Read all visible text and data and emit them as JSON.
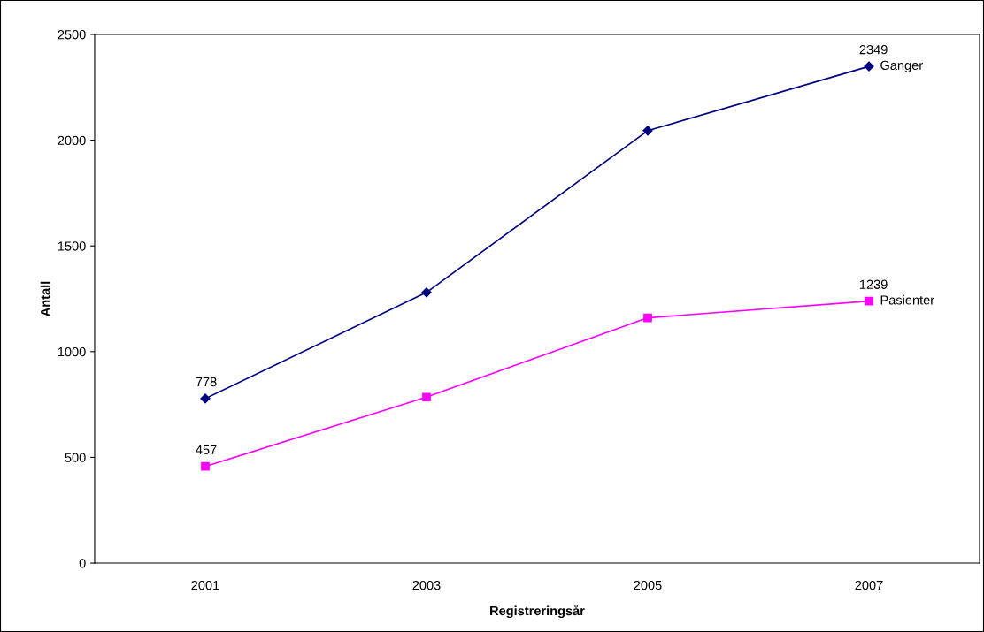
{
  "chart_data": {
    "type": "line",
    "xlabel": "Registreringsår",
    "ylabel": "Antall",
    "categories": [
      "2001",
      "2003",
      "2005",
      "2007"
    ],
    "series": [
      {
        "name": "Ganger",
        "color": "#000080",
        "marker": "diamond",
        "values": [
          778,
          1280,
          2045,
          2349
        ],
        "value_labels": [
          "778",
          null,
          null,
          "2349"
        ]
      },
      {
        "name": "Pasienter",
        "color": "#ff00ff",
        "marker": "square",
        "values": [
          457,
          785,
          1160,
          1239
        ],
        "value_labels": [
          "457",
          null,
          null,
          "1239"
        ]
      }
    ],
    "ylim": [
      0,
      2500
    ],
    "yticks": [
      0,
      500,
      1000,
      1500,
      2000,
      2500
    ],
    "grid": false,
    "legend": false,
    "line_style": "solid"
  }
}
